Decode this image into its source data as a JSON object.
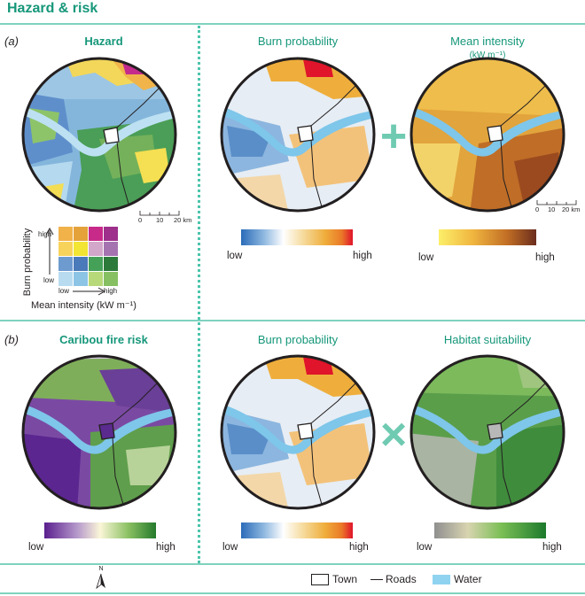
{
  "title": "Hazard & risk",
  "panel_a": {
    "label_open": "(",
    "label_letter": "a",
    "label_close": ")",
    "hazard_title": "Hazard",
    "burn_title": "Burn probability",
    "intensity_title": "Mean intensity",
    "intensity_units": "(kW m⁻¹)",
    "operator": "+",
    "burn_low": "low",
    "burn_high": "high",
    "intensity_low": "low",
    "intensity_high": "high",
    "scalebar": [
      "0",
      "10",
      "20 km"
    ],
    "bivariate": {
      "y_axis": "Burn probability",
      "x_axis": "Mean intensity (kW m⁻¹)",
      "y_high": "high",
      "y_low": "low",
      "x_low": "low",
      "x_high": "high",
      "grid_colors": [
        [
          "#f1b24a",
          "#e5a23a",
          "#c82a8a",
          "#9e2f8b"
        ],
        [
          "#f7d35c",
          "#f2e533",
          "#d2a7c9",
          "#a574b0"
        ],
        [
          "#6d9bd0",
          "#4a7ab9",
          "#45a158",
          "#2c7a3a"
        ],
        [
          "#b9dbef",
          "#8cc4e6",
          "#b7d97a",
          "#86c063"
        ]
      ]
    }
  },
  "panel_b": {
    "label_open": "(",
    "label_letter": "b",
    "label_close": ")",
    "risk_title": "Caribou fire risk",
    "burn_title": "Burn probability",
    "habitat_title": "Habitat suitability",
    "operator": "×",
    "risk_low": "low",
    "risk_high": "high",
    "burn_low": "low",
    "burn_high": "high",
    "habitat_low": "low",
    "habitat_high": "high"
  },
  "legend": {
    "north": "N",
    "town": "Town",
    "roads": "Roads",
    "water": "Water"
  },
  "colors": {
    "accent": "#16977a",
    "rule": "#7fd2be",
    "water": "#8fd3f0"
  }
}
